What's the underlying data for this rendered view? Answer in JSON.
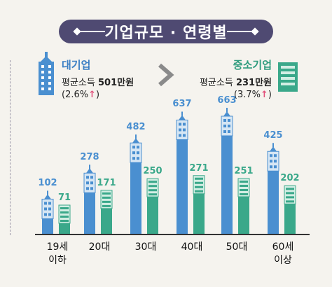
{
  "title": "기업규모 · 연령별",
  "large": {
    "name": "대기업",
    "income_label": "평균소득",
    "income_value": "501만원",
    "change": "(2.6%",
    "change_close": ")"
  },
  "sme": {
    "name": "중소기업",
    "income_label": "평균소득",
    "income_value": "231만원",
    "change": "(3.7%",
    "change_close": ")"
  },
  "colors": {
    "large": "#4a8fd0",
    "large_light": "#d6e6f4",
    "sme": "#3aa88a",
    "sme_light": "#d3eee4",
    "large_text": "#4a8fd0",
    "sme_text": "#3aa88a"
  },
  "chart_data": {
    "type": "bar",
    "categories": [
      "19세\n이하",
      "20대",
      "30대",
      "40대",
      "50대",
      "60세\n이상"
    ],
    "series": [
      {
        "name": "대기업",
        "values": [
          102,
          278,
          482,
          637,
          663,
          425
        ]
      },
      {
        "name": "중소기업",
        "values": [
          71,
          171,
          250,
          271,
          251,
          202
        ]
      }
    ],
    "ylim": [
      0,
      700
    ],
    "grid": false,
    "legend": "none"
  }
}
